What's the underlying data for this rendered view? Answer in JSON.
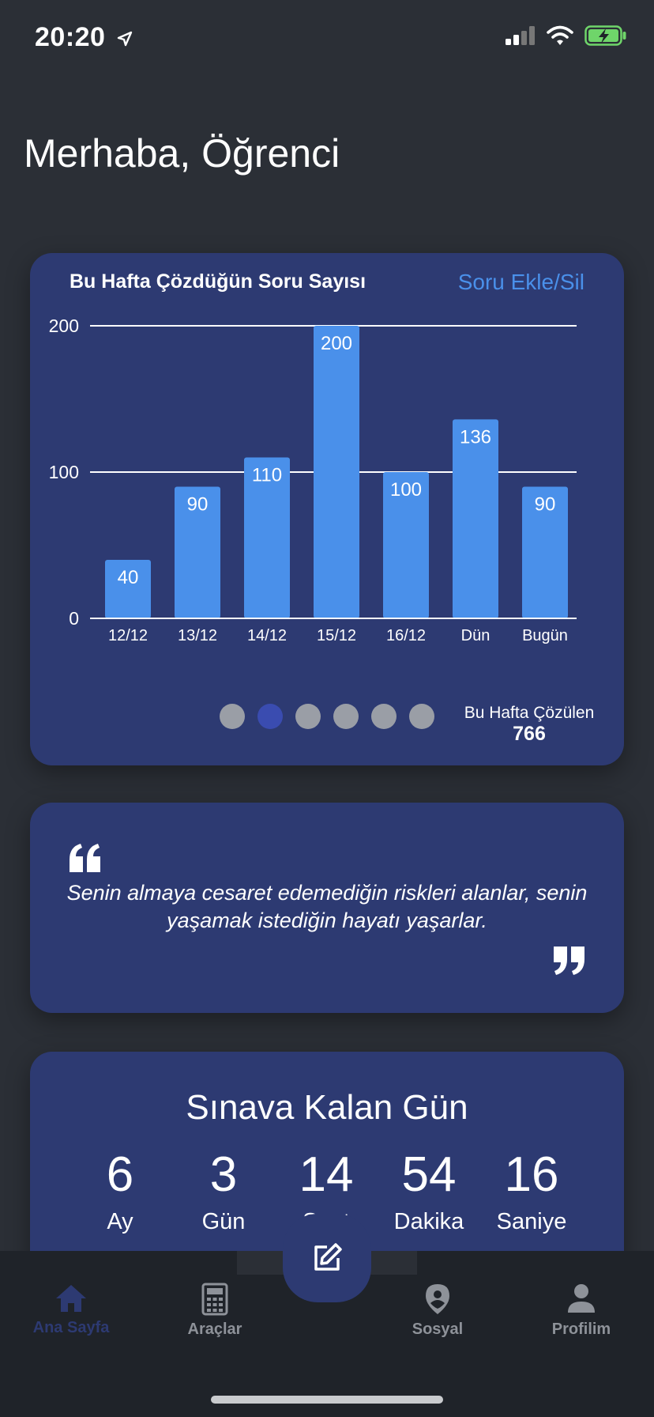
{
  "status_bar": {
    "time": "20:20"
  },
  "greeting": "Merhaba, Öğrenci",
  "weekly_card": {
    "title": "Bu Hafta Çözdüğün Soru Sayısı",
    "link": "Soru Ekle/Sil",
    "total_label": "Bu Hafta Çözülen",
    "total_value": "766",
    "dots": {
      "count": 6,
      "active_index": 1
    }
  },
  "chart_data": {
    "type": "bar",
    "title": "",
    "xlabel": "",
    "ylabel": "",
    "categories": [
      "12/12",
      "13/12",
      "14/12",
      "15/12",
      "16/12",
      "Dün",
      "Bugün"
    ],
    "values": [
      40,
      90,
      110,
      200,
      100,
      136,
      90
    ],
    "data_labels": [
      "40",
      "90",
      "110",
      "200",
      "100",
      "136",
      "90"
    ],
    "ylim": [
      0,
      200
    ],
    "yticks": [
      0,
      100,
      200
    ],
    "ytick_labels": [
      "0",
      "100",
      "200"
    ],
    "grid": true,
    "bar_color": "#4a90ea"
  },
  "quote_card": {
    "text": "Senin almaya cesaret edemediğin riskleri alanlar, senin yaşamak istediğin hayatı yaşarlar."
  },
  "timer_card": {
    "title": "Sınava Kalan Gün",
    "units": [
      {
        "value": "6",
        "label": "Ay"
      },
      {
        "value": "3",
        "label": "Gün"
      },
      {
        "value": "14",
        "label": "Saat"
      },
      {
        "value": "54",
        "label": "Dakika"
      },
      {
        "value": "16",
        "label": "Saniye"
      }
    ]
  },
  "bottom_nav": {
    "items": [
      {
        "label": "Ana Sayfa",
        "icon": "home-icon"
      },
      {
        "label": "Araçlar",
        "icon": "calculator-icon"
      },
      {
        "label": "Sosyal",
        "icon": "location-pin-icon"
      },
      {
        "label": "Profilim",
        "icon": "person-icon"
      }
    ],
    "fab_icon": "edit-icon"
  },
  "colors": {
    "background": "#2b2f36",
    "card": "#2d3a72",
    "accent": "#4a90ea",
    "active_dot": "#3a4cb0",
    "nav_bar": "#1f2329"
  }
}
